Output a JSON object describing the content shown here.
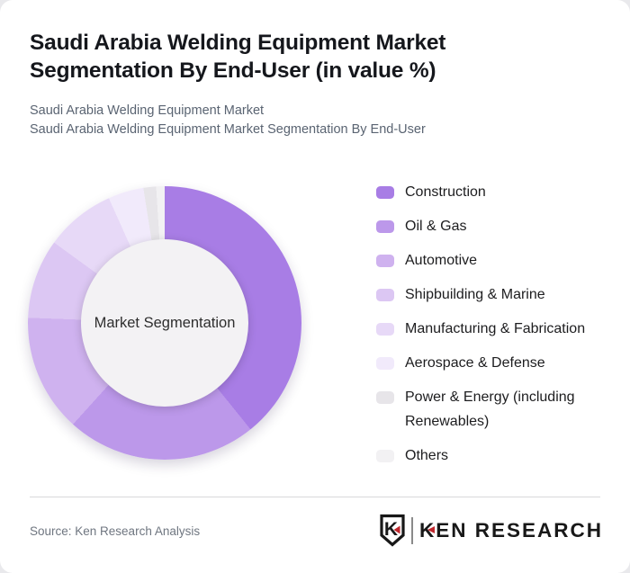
{
  "header": {
    "title": "Saudi Arabia Welding Equipment Market Segmentation By End-User (in value %)",
    "subtitle_line1": "Saudi Arabia Welding Equipment Market",
    "subtitle_line2": "Saudi Arabia Welding Equipment Market Segmentation By End-User"
  },
  "chart_data": {
    "type": "pie",
    "subtype": "donut",
    "title": "Saudi Arabia Welding Equipment Market Segmentation By End-User (in value %)",
    "center_label": "Market Segmentation",
    "legend_position": "right",
    "start_angle_deg": 0,
    "direction": "clockwise",
    "values_shown_on_chart": false,
    "units": "percent of market value (estimated from arc angles)",
    "segments": [
      {
        "label": "Construction",
        "value": 39.2,
        "color": "#a87de5"
      },
      {
        "label": "Oil & Gas",
        "value": 22.5,
        "color": "#bc98ea"
      },
      {
        "label": "Automotive",
        "value": 13.9,
        "color": "#cfb2ef"
      },
      {
        "label": "Shipbuilding & Marine",
        "value": 9.4,
        "color": "#dcc7f3"
      },
      {
        "label": "Manufacturing & Fabrication",
        "value": 8.3,
        "color": "#e7d9f7"
      },
      {
        "label": "Aerospace & Defense",
        "value": 4.2,
        "color": "#f1eafb"
      },
      {
        "label": "Power & Energy (including Renewables)",
        "value": 1.5,
        "color": "#e7e5e9"
      },
      {
        "label": "Others",
        "value": 1.0,
        "color": "#f2f1f3"
      }
    ],
    "hole_fill": "#f3f2f4"
  },
  "footer": {
    "source_text": "Source: Ken Research Analysis",
    "logo_text": "KEN RESEARCH",
    "logo_shield_letter": "K",
    "brand_red": "#c0272d",
    "brand_black": "#181818"
  }
}
